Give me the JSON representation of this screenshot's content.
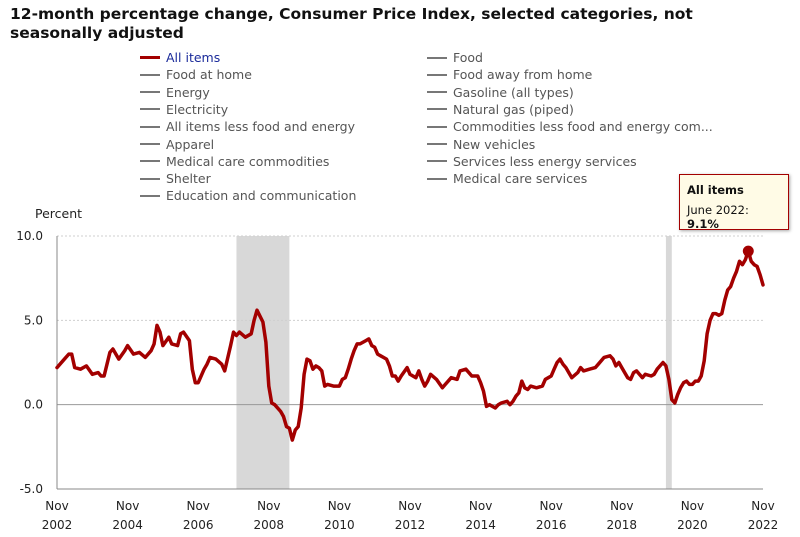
{
  "title": "12-month percentage change, Consumer Price Index, selected categories, not seasonally adjusted",
  "legend": {
    "left": [
      "All items",
      "Food at home",
      "Energy",
      "Electricity",
      "All items less food and energy",
      "Apparel",
      "Medical care commodities",
      "Shelter",
      "Education and communication"
    ],
    "right": [
      "Food",
      "Food away from home",
      "Gasoline (all types)",
      "Natural gas (piped)",
      "Commodities less food and energy com...",
      "New vehicles",
      "Services less energy services",
      "Medical care services"
    ]
  },
  "tooltip": {
    "title": "All items",
    "label": "June 2022:",
    "value": "9.1%"
  },
  "colors": {
    "series": "#a30000",
    "recession": "#d8d8d8",
    "legend_active": "#1a2a9a"
  },
  "chart_data": {
    "type": "line",
    "ylabel": "Percent",
    "ylim": [
      -5,
      10
    ],
    "yticks": [
      "10.0",
      "5.0",
      "0.0",
      "-5.0"
    ],
    "x_tick_labels": [
      {
        "month": "Nov",
        "year": "2002"
      },
      {
        "month": "Nov",
        "year": "2004"
      },
      {
        "month": "Nov",
        "year": "2006"
      },
      {
        "month": "Nov",
        "year": "2008"
      },
      {
        "month": "Nov",
        "year": "2010"
      },
      {
        "month": "Nov",
        "year": "2012"
      },
      {
        "month": "Nov",
        "year": "2014"
      },
      {
        "month": "Nov",
        "year": "2016"
      },
      {
        "month": "Nov",
        "year": "2018"
      },
      {
        "month": "Nov",
        "year": "2020"
      },
      {
        "month": "Nov",
        "year": "2022"
      }
    ],
    "x_range": [
      "2002-11",
      "2022-11"
    ],
    "recessions": [
      [
        "2007-12",
        "2009-06"
      ],
      [
        "2020-02",
        "2020-04"
      ]
    ],
    "highlight": {
      "date": "2022-06",
      "value": 9.1
    },
    "series": [
      {
        "name": "All items",
        "points": [
          [
            "2002-11",
            2.2
          ],
          [
            "2003-01",
            2.6
          ],
          [
            "2003-03",
            3.0
          ],
          [
            "2003-04",
            3.0
          ],
          [
            "2003-05",
            2.2
          ],
          [
            "2003-07",
            2.1
          ],
          [
            "2003-09",
            2.3
          ],
          [
            "2003-11",
            1.8
          ],
          [
            "2004-01",
            1.9
          ],
          [
            "2004-02",
            1.7
          ],
          [
            "2004-03",
            1.7
          ],
          [
            "2004-05",
            3.1
          ],
          [
            "2004-06",
            3.3
          ],
          [
            "2004-08",
            2.7
          ],
          [
            "2004-10",
            3.2
          ],
          [
            "2004-11",
            3.5
          ],
          [
            "2005-01",
            3.0
          ],
          [
            "2005-03",
            3.1
          ],
          [
            "2005-05",
            2.8
          ],
          [
            "2005-07",
            3.2
          ],
          [
            "2005-08",
            3.6
          ],
          [
            "2005-09",
            4.7
          ],
          [
            "2005-10",
            4.3
          ],
          [
            "2005-11",
            3.5
          ],
          [
            "2006-01",
            4.0
          ],
          [
            "2006-02",
            3.6
          ],
          [
            "2006-04",
            3.5
          ],
          [
            "2006-05",
            4.2
          ],
          [
            "2006-06",
            4.3
          ],
          [
            "2006-08",
            3.8
          ],
          [
            "2006-09",
            2.1
          ],
          [
            "2006-10",
            1.3
          ],
          [
            "2006-11",
            1.3
          ],
          [
            "2007-01",
            2.1
          ],
          [
            "2007-02",
            2.4
          ],
          [
            "2007-03",
            2.8
          ],
          [
            "2007-05",
            2.7
          ],
          [
            "2007-07",
            2.4
          ],
          [
            "2007-08",
            2.0
          ],
          [
            "2007-10",
            3.5
          ],
          [
            "2007-11",
            4.3
          ],
          [
            "2007-12",
            4.1
          ],
          [
            "2008-01",
            4.3
          ],
          [
            "2008-03",
            4.0
          ],
          [
            "2008-05",
            4.2
          ],
          [
            "2008-06",
            5.0
          ],
          [
            "2008-07",
            5.6
          ],
          [
            "2008-09",
            4.9
          ],
          [
            "2008-10",
            3.7
          ],
          [
            "2008-11",
            1.1
          ],
          [
            "2008-12",
            0.1
          ],
          [
            "2009-01",
            0.0
          ],
          [
            "2009-03",
            -0.4
          ],
          [
            "2009-04",
            -0.7
          ],
          [
            "2009-05",
            -1.3
          ],
          [
            "2009-06",
            -1.4
          ],
          [
            "2009-07",
            -2.1
          ],
          [
            "2009-08",
            -1.5
          ],
          [
            "2009-09",
            -1.3
          ],
          [
            "2009-10",
            -0.2
          ],
          [
            "2009-11",
            1.8
          ],
          [
            "2009-12",
            2.7
          ],
          [
            "2010-01",
            2.6
          ],
          [
            "2010-02",
            2.1
          ],
          [
            "2010-03",
            2.3
          ],
          [
            "2010-04",
            2.2
          ],
          [
            "2010-05",
            2.0
          ],
          [
            "2010-06",
            1.1
          ],
          [
            "2010-07",
            1.2
          ],
          [
            "2010-09",
            1.1
          ],
          [
            "2010-11",
            1.1
          ],
          [
            "2010-12",
            1.5
          ],
          [
            "2011-01",
            1.6
          ],
          [
            "2011-02",
            2.1
          ],
          [
            "2011-03",
            2.7
          ],
          [
            "2011-04",
            3.2
          ],
          [
            "2011-05",
            3.6
          ],
          [
            "2011-06",
            3.6
          ],
          [
            "2011-08",
            3.8
          ],
          [
            "2011-09",
            3.9
          ],
          [
            "2011-10",
            3.5
          ],
          [
            "2011-11",
            3.4
          ],
          [
            "2011-12",
            3.0
          ],
          [
            "2012-01",
            2.9
          ],
          [
            "2012-03",
            2.7
          ],
          [
            "2012-04",
            2.3
          ],
          [
            "2012-05",
            1.7
          ],
          [
            "2012-06",
            1.7
          ],
          [
            "2012-07",
            1.4
          ],
          [
            "2012-08",
            1.7
          ],
          [
            "2012-10",
            2.2
          ],
          [
            "2012-11",
            1.8
          ],
          [
            "2012-12",
            1.7
          ],
          [
            "2013-01",
            1.6
          ],
          [
            "2013-02",
            2.0
          ],
          [
            "2013-03",
            1.5
          ],
          [
            "2013-04",
            1.1
          ],
          [
            "2013-05",
            1.4
          ],
          [
            "2013-06",
            1.8
          ],
          [
            "2013-08",
            1.5
          ],
          [
            "2013-10",
            1.0
          ],
          [
            "2013-11",
            1.2
          ],
          [
            "2014-01",
            1.6
          ],
          [
            "2014-03",
            1.5
          ],
          [
            "2014-04",
            2.0
          ],
          [
            "2014-06",
            2.1
          ],
          [
            "2014-08",
            1.7
          ],
          [
            "2014-10",
            1.7
          ],
          [
            "2014-11",
            1.3
          ],
          [
            "2014-12",
            0.8
          ],
          [
            "2015-01",
            -0.1
          ],
          [
            "2015-02",
            0.0
          ],
          [
            "2015-04",
            -0.2
          ],
          [
            "2015-05",
            0.0
          ],
          [
            "2015-06",
            0.1
          ],
          [
            "2015-08",
            0.2
          ],
          [
            "2015-09",
            0.0
          ],
          [
            "2015-10",
            0.2
          ],
          [
            "2015-11",
            0.5
          ],
          [
            "2015-12",
            0.7
          ],
          [
            "2016-01",
            1.4
          ],
          [
            "2016-02",
            1.0
          ],
          [
            "2016-03",
            0.9
          ],
          [
            "2016-04",
            1.1
          ],
          [
            "2016-06",
            1.0
          ],
          [
            "2016-08",
            1.1
          ],
          [
            "2016-09",
            1.5
          ],
          [
            "2016-10",
            1.6
          ],
          [
            "2016-11",
            1.7
          ],
          [
            "2016-12",
            2.1
          ],
          [
            "2017-01",
            2.5
          ],
          [
            "2017-02",
            2.7
          ],
          [
            "2017-03",
            2.4
          ],
          [
            "2017-04",
            2.2
          ],
          [
            "2017-05",
            1.9
          ],
          [
            "2017-06",
            1.6
          ],
          [
            "2017-08",
            1.9
          ],
          [
            "2017-09",
            2.2
          ],
          [
            "2017-10",
            2.0
          ],
          [
            "2017-12",
            2.1
          ],
          [
            "2018-02",
            2.2
          ],
          [
            "2018-03",
            2.4
          ],
          [
            "2018-05",
            2.8
          ],
          [
            "2018-07",
            2.9
          ],
          [
            "2018-08",
            2.7
          ],
          [
            "2018-09",
            2.3
          ],
          [
            "2018-10",
            2.5
          ],
          [
            "2018-11",
            2.2
          ],
          [
            "2018-12",
            1.9
          ],
          [
            "2019-01",
            1.6
          ],
          [
            "2019-02",
            1.5
          ],
          [
            "2019-03",
            1.9
          ],
          [
            "2019-04",
            2.0
          ],
          [
            "2019-05",
            1.8
          ],
          [
            "2019-06",
            1.6
          ],
          [
            "2019-07",
            1.8
          ],
          [
            "2019-09",
            1.7
          ],
          [
            "2019-10",
            1.8
          ],
          [
            "2019-11",
            2.1
          ],
          [
            "2019-12",
            2.3
          ],
          [
            "2020-01",
            2.5
          ],
          [
            "2020-02",
            2.3
          ],
          [
            "2020-03",
            1.5
          ],
          [
            "2020-04",
            0.3
          ],
          [
            "2020-05",
            0.1
          ],
          [
            "2020-06",
            0.6
          ],
          [
            "2020-07",
            1.0
          ],
          [
            "2020-08",
            1.3
          ],
          [
            "2020-09",
            1.4
          ],
          [
            "2020-10",
            1.2
          ],
          [
            "2020-11",
            1.2
          ],
          [
            "2020-12",
            1.4
          ],
          [
            "2021-01",
            1.4
          ],
          [
            "2021-02",
            1.7
          ],
          [
            "2021-03",
            2.6
          ],
          [
            "2021-04",
            4.2
          ],
          [
            "2021-05",
            5.0
          ],
          [
            "2021-06",
            5.4
          ],
          [
            "2021-07",
            5.4
          ],
          [
            "2021-08",
            5.3
          ],
          [
            "2021-09",
            5.4
          ],
          [
            "2021-10",
            6.2
          ],
          [
            "2021-11",
            6.8
          ],
          [
            "2021-12",
            7.0
          ],
          [
            "2022-01",
            7.5
          ],
          [
            "2022-02",
            7.9
          ],
          [
            "2022-03",
            8.5
          ],
          [
            "2022-04",
            8.3
          ],
          [
            "2022-05",
            8.6
          ],
          [
            "2022-06",
            9.1
          ],
          [
            "2022-07",
            8.5
          ],
          [
            "2022-08",
            8.3
          ],
          [
            "2022-09",
            8.2
          ],
          [
            "2022-10",
            7.7
          ],
          [
            "2022-11",
            7.1
          ]
        ]
      }
    ]
  }
}
